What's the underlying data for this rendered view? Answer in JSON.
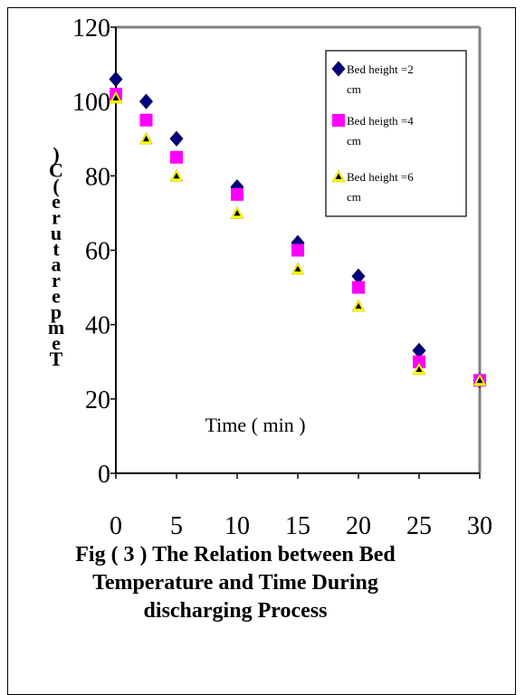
{
  "chart_data": {
    "type": "scatter",
    "title": "",
    "xlabel": "Time ( min )",
    "ylabel": "Temperature ( C )",
    "xlim": [
      0,
      30
    ],
    "ylim": [
      0,
      120
    ],
    "x_ticks": [
      "0",
      "5",
      "10",
      "15",
      "20",
      "25",
      "30"
    ],
    "y_ticks": [
      "0",
      "20",
      "40",
      "60",
      "80",
      "100",
      "120"
    ],
    "grid": false,
    "legend_position": "top-right (inside plot)",
    "x": [
      0,
      2.5,
      5,
      10,
      15,
      20,
      25,
      30
    ],
    "series": [
      {
        "name": "Bed height =2 cm",
        "legend_lines": [
          "Bed height =2",
          "cm"
        ],
        "marker": "diamond",
        "color": "#000080",
        "values": [
          106,
          100,
          90,
          77,
          62,
          53,
          33,
          25
        ]
      },
      {
        "name": "Bed heigth =4 cm",
        "legend_lines": [
          "Bed heigth =4",
          "cm"
        ],
        "marker": "square",
        "color": "#FF00FF",
        "values": [
          102,
          95,
          85,
          75,
          60,
          50,
          30,
          25
        ]
      },
      {
        "name": "Bed height =6 cm",
        "legend_lines": [
          "Bed height =6",
          "cm"
        ],
        "marker": "triangle",
        "color": "#FFFF00",
        "values": [
          101,
          90,
          80,
          70,
          55,
          45,
          28,
          25
        ]
      }
    ]
  },
  "caption": {
    "line1": "Fig ( 3 ) The Relation between Bed",
    "line2": "Temperature and Time During",
    "line3": "discharging Process"
  }
}
